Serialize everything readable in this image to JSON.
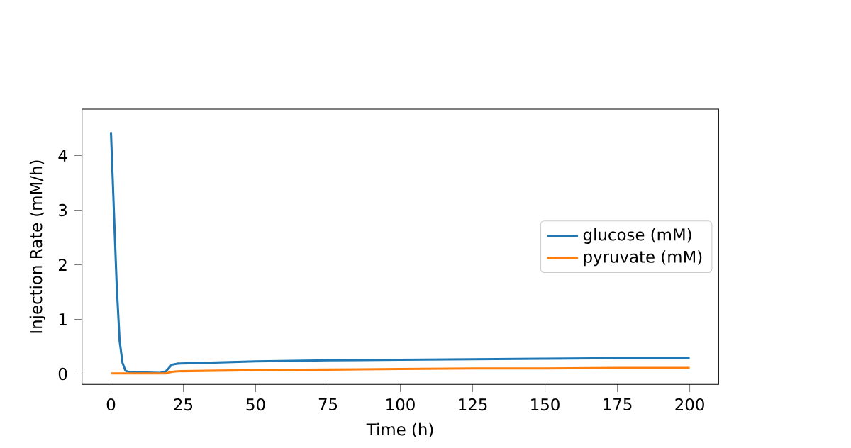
{
  "chart_data": {
    "type": "line",
    "xlabel": "Time (h)",
    "ylabel": "Injection Rate (mM/h)",
    "xlim": [
      -10,
      210
    ],
    "ylim": [
      -0.19,
      4.85
    ],
    "xticks": [
      0,
      25,
      50,
      75,
      100,
      125,
      150,
      175,
      200
    ],
    "yticks": [
      0,
      1,
      2,
      3,
      4
    ],
    "legend": "right",
    "grid": false,
    "series": [
      {
        "name": "glucose (mM)",
        "color": "#1f77b4",
        "x": [
          0,
          1,
          2,
          3,
          4,
          5,
          6,
          10,
          17,
          19,
          21,
          23,
          30,
          50,
          75,
          100,
          125,
          150,
          175,
          200
        ],
        "values": [
          4.43,
          3.0,
          1.6,
          0.6,
          0.2,
          0.06,
          0.04,
          0.03,
          0.02,
          0.05,
          0.17,
          0.19,
          0.2,
          0.23,
          0.25,
          0.26,
          0.27,
          0.28,
          0.29,
          0.29
        ]
      },
      {
        "name": "pyruvate (mM)",
        "color": "#ff7f0e",
        "x": [
          0,
          10,
          19,
          21,
          23,
          50,
          75,
          100,
          125,
          150,
          175,
          200
        ],
        "values": [
          0.01,
          0.01,
          0.01,
          0.04,
          0.05,
          0.07,
          0.08,
          0.09,
          0.1,
          0.1,
          0.11,
          0.11
        ]
      }
    ]
  }
}
